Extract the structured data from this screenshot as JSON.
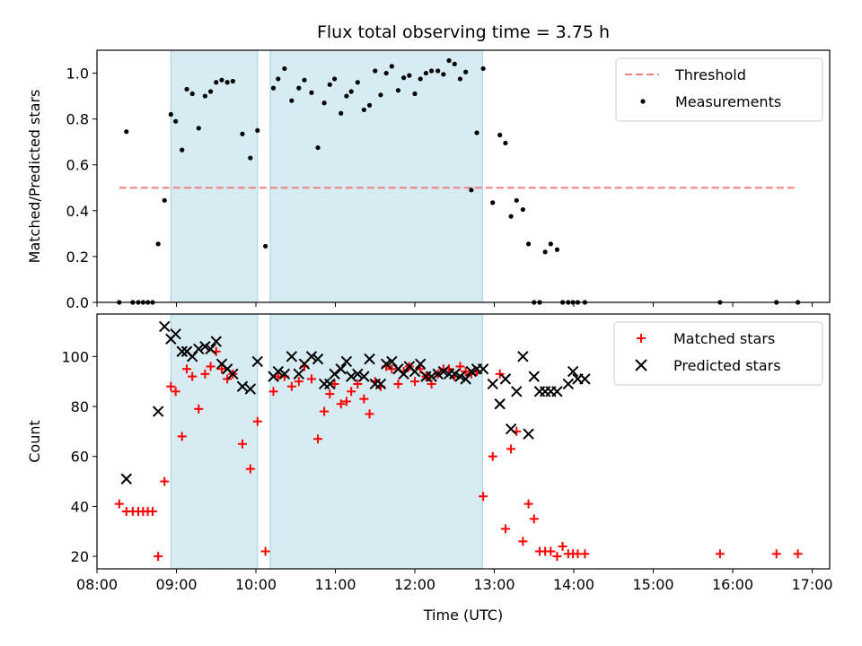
{
  "chart_data": [
    {
      "type": "scatter",
      "title": "Flux total observing time = 3.75 h",
      "xlabel": "",
      "ylabel": "Matched/Predicted stars",
      "xlim": [
        8.0,
        17.22
      ],
      "ylim": [
        0.0,
        1.1
      ],
      "yticks": [
        0.0,
        0.2,
        0.4,
        0.6,
        0.8,
        1.0
      ],
      "ytick_labels": [
        "0.0",
        "0.2",
        "0.4",
        "0.6",
        "0.8",
        "1.0"
      ],
      "xticks": [
        8,
        9,
        10,
        11,
        12,
        13,
        14,
        15,
        16,
        17
      ],
      "grid": false,
      "legend_position": "top-right",
      "shaded_intervals": [
        [
          8.93,
          10.02
        ],
        [
          10.18,
          12.85
        ]
      ],
      "threshold": {
        "name": "Threshold",
        "y": 0.5,
        "x_range": [
          8.28,
          16.82
        ],
        "color": "#f08080"
      },
      "series": [
        {
          "name": "Measurements",
          "marker": "dot",
          "color": "#000000",
          "x": [
            8.28,
            8.37,
            8.45,
            8.52,
            8.58,
            8.64,
            8.7,
            8.77,
            8.85,
            8.93,
            8.99,
            9.07,
            9.13,
            9.2,
            9.28,
            9.36,
            9.43,
            9.5,
            9.57,
            9.64,
            9.71,
            9.83,
            9.93,
            10.02,
            10.12,
            10.22,
            10.28,
            10.36,
            10.45,
            10.54,
            10.61,
            10.7,
            10.78,
            10.86,
            10.93,
            10.99,
            11.07,
            11.14,
            11.2,
            11.28,
            11.36,
            11.43,
            11.5,
            11.57,
            11.64,
            11.71,
            11.79,
            11.86,
            11.93,
            12.0,
            12.07,
            12.14,
            12.21,
            12.29,
            12.36,
            12.43,
            12.5,
            12.57,
            12.64,
            12.71,
            12.78,
            12.86,
            12.98,
            13.07,
            13.14,
            13.21,
            13.28,
            13.36,
            13.43,
            13.5,
            13.57,
            13.64,
            13.71,
            13.79,
            13.86,
            13.93,
            13.99,
            14.05,
            14.14,
            15.84,
            16.55,
            16.82
          ],
          "y": [
            0.0,
            0.745,
            0.0,
            0.0,
            0.0,
            0.0,
            0.0,
            0.255,
            0.445,
            0.82,
            0.79,
            0.665,
            0.93,
            0.91,
            0.76,
            0.9,
            0.92,
            0.96,
            0.97,
            0.96,
            0.965,
            0.735,
            0.63,
            0.75,
            0.245,
            0.935,
            0.975,
            1.02,
            0.88,
            0.935,
            0.97,
            0.915,
            0.675,
            0.87,
            0.95,
            0.975,
            0.825,
            0.9,
            0.92,
            0.96,
            0.84,
            0.86,
            1.01,
            0.905,
            1.0,
            1.03,
            0.925,
            0.98,
            0.99,
            0.91,
            0.975,
            1.0,
            1.01,
            1.01,
            0.995,
            1.055,
            1.04,
            0.975,
            1.005,
            0.49,
            0.74,
            1.02,
            0.435,
            0.73,
            0.695,
            0.375,
            0.445,
            0.405,
            0.255,
            0.0,
            0.0,
            0.22,
            0.255,
            0.23,
            0.0,
            0.0,
            0.0,
            0.0,
            0.0,
            0.0,
            0.0,
            0.0
          ]
        }
      ]
    },
    {
      "type": "scatter",
      "title": "",
      "xlabel": "Time (UTC)",
      "ylabel": "Count",
      "xlim": [
        8.0,
        17.22
      ],
      "ylim": [
        15.0,
        117.0
      ],
      "yticks": [
        20,
        40,
        60,
        80,
        100
      ],
      "ytick_labels": [
        "20",
        "40",
        "60",
        "80",
        "100"
      ],
      "xticks": [
        8,
        9,
        10,
        11,
        12,
        13,
        14,
        15,
        16,
        17
      ],
      "xtick_labels": [
        "08:00",
        "09:00",
        "10:00",
        "11:00",
        "12:00",
        "13:00",
        "14:00",
        "15:00",
        "16:00",
        "17:00"
      ],
      "grid": false,
      "legend_position": "top-right",
      "shaded_intervals": [
        [
          8.93,
          10.02
        ],
        [
          10.18,
          12.85
        ]
      ],
      "series": [
        {
          "name": "Matched stars",
          "marker": "plus",
          "color": "#ff0000",
          "x": [
            8.28,
            8.37,
            8.45,
            8.52,
            8.58,
            8.64,
            8.7,
            8.77,
            8.85,
            8.93,
            8.99,
            9.07,
            9.13,
            9.2,
            9.28,
            9.36,
            9.43,
            9.5,
            9.57,
            9.64,
            9.71,
            9.83,
            9.93,
            10.02,
            10.12,
            10.22,
            10.28,
            10.36,
            10.45,
            10.54,
            10.61,
            10.7,
            10.78,
            10.86,
            10.93,
            10.99,
            11.07,
            11.14,
            11.2,
            11.28,
            11.36,
            11.43,
            11.5,
            11.57,
            11.64,
            11.71,
            11.79,
            11.86,
            11.93,
            12.0,
            12.07,
            12.14,
            12.21,
            12.29,
            12.36,
            12.43,
            12.5,
            12.57,
            12.64,
            12.71,
            12.78,
            12.86,
            12.98,
            13.07,
            13.14,
            13.21,
            13.28,
            13.36,
            13.43,
            13.5,
            13.57,
            13.64,
            13.71,
            13.79,
            13.86,
            13.93,
            13.99,
            14.05,
            14.14,
            15.84,
            16.55,
            16.82
          ],
          "y": [
            41,
            38,
            38,
            38,
            38,
            38,
            38,
            20,
            50,
            88,
            86,
            68,
            95,
            92,
            79,
            93,
            96,
            102,
            95,
            91,
            93,
            65,
            55,
            74,
            22,
            86,
            92,
            92,
            88,
            90,
            96,
            91,
            67,
            78,
            85,
            89,
            81,
            82,
            86,
            89,
            83,
            77,
            90,
            88,
            96,
            95,
            89,
            94,
            96,
            90,
            95,
            92,
            89,
            93,
            95,
            95,
            92,
            96,
            94,
            93,
            94,
            44,
            60,
            93,
            31,
            63,
            70,
            26,
            41,
            35,
            22,
            22,
            22,
            20,
            24,
            21,
            21,
            21,
            21,
            21,
            21,
            21
          ]
        },
        {
          "name": "Predicted stars",
          "marker": "x",
          "color": "#000000",
          "x": [
            8.37,
            8.77,
            8.85,
            8.93,
            8.99,
            9.07,
            9.13,
            9.2,
            9.28,
            9.36,
            9.43,
            9.5,
            9.57,
            9.64,
            9.71,
            9.83,
            9.93,
            10.02,
            10.22,
            10.28,
            10.36,
            10.45,
            10.54,
            10.61,
            10.7,
            10.78,
            10.86,
            10.93,
            10.99,
            11.07,
            11.14,
            11.2,
            11.28,
            11.36,
            11.43,
            11.5,
            11.57,
            11.64,
            11.71,
            11.79,
            11.86,
            11.93,
            12.0,
            12.07,
            12.14,
            12.21,
            12.29,
            12.36,
            12.43,
            12.5,
            12.57,
            12.64,
            12.71,
            12.78,
            12.86,
            12.98,
            13.07,
            13.14,
            13.21,
            13.28,
            13.36,
            13.43,
            13.5,
            13.57,
            13.64,
            13.71,
            13.79,
            13.93,
            13.99,
            14.05,
            14.14
          ],
          "y": [
            51,
            78,
            112,
            107,
            109,
            102,
            102,
            100,
            103,
            104,
            103,
            106,
            97,
            95,
            93,
            88,
            87,
            98,
            92,
            94,
            93,
            100,
            93,
            97,
            100,
            99,
            89,
            89,
            93,
            95,
            98,
            92,
            93,
            92,
            99,
            89,
            89,
            97,
            98,
            95,
            93,
            96,
            94,
            97,
            92,
            92,
            93,
            94,
            93,
            93,
            92,
            91,
            94,
            95,
            95,
            89,
            81,
            91,
            71,
            86,
            100,
            69,
            92,
            86,
            86,
            86,
            86,
            89,
            94,
            91,
            91
          ]
        }
      ]
    }
  ]
}
